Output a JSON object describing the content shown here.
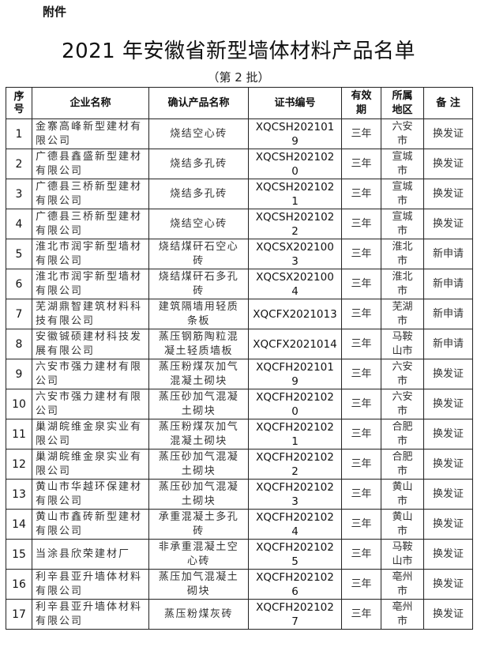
{
  "header": {
    "attachment_label": "附件",
    "title": "2021 年安徽省新型墙体材料产品名单",
    "subtitle": "（第 2 批）"
  },
  "table": {
    "columns": [
      "序号",
      "企业名称",
      "确认产品名称",
      "证书编号",
      "有效期",
      "所属地区",
      "备 注"
    ],
    "rows": [
      {
        "no": "1",
        "company": "金寨高峰新型建材有限公司",
        "product": "烧结空心砖",
        "cert": "XQCSH2021019",
        "validity": "三年",
        "region": "六安市",
        "note": "换发证"
      },
      {
        "no": "2",
        "company": "广德县鑫盛新型建材有限公司",
        "product": "烧结多孔砖",
        "cert": "XQCSH2021020",
        "validity": "三年",
        "region": "宣城市",
        "note": "换发证"
      },
      {
        "no": "3",
        "company": "广德县三桥新型建材有限公司",
        "product": "烧结多孔砖",
        "cert": "XQCSH2021021",
        "validity": "三年",
        "region": "宣城市",
        "note": "换发证"
      },
      {
        "no": "4",
        "company": "广德县三桥新型建材有限公司",
        "product": "烧结空心砖",
        "cert": "XQCSH2021022",
        "validity": "三年",
        "region": "宣城市",
        "note": "换发证"
      },
      {
        "no": "5",
        "company": "淮北市润宇新型墙材有限公司",
        "product": "烧结煤矸石空心砖",
        "cert": "XQCSX2021003",
        "validity": "三年",
        "region": "淮北市",
        "note": "新申请"
      },
      {
        "no": "6",
        "company": "淮北市润宇新型墙材有限公司",
        "product": "烧结煤矸石多孔砖",
        "cert": "XQCSX2021004",
        "validity": "三年",
        "region": "淮北市",
        "note": "新申请"
      },
      {
        "no": "7",
        "company": "芜湖鼎智建筑材料科技有限公司",
        "product": "建筑隔墙用轻质条板",
        "cert": "XQCFX2021013",
        "validity": "三年",
        "region": "芜湖市",
        "note": "新申请"
      },
      {
        "no": "8",
        "company": "安徽铖硕建材科技发展有限公司",
        "product": "蒸压钢筋陶粒混凝土轻质墙板",
        "cert": "XQCFX2021014",
        "validity": "三年",
        "region": "马鞍山市",
        "note": "新申请"
      },
      {
        "no": "9",
        "company": "六安市强力建材有限公司",
        "product": "蒸压粉煤灰加气混凝土砌块",
        "cert": "XQCFH2021019",
        "validity": "三年",
        "region": "六安市",
        "note": "换发证"
      },
      {
        "no": "10",
        "company": "六安市强力建材有限公司",
        "product": "蒸压砂加气混凝土砌块",
        "cert": "XQCFH2021020",
        "validity": "三年",
        "region": "六安市",
        "note": "换发证"
      },
      {
        "no": "11",
        "company": "巢湖皖维金泉实业有限公司",
        "product": "蒸压粉煤灰加气混凝土砌块",
        "cert": "XQCFH2021021",
        "validity": "三年",
        "region": "合肥市",
        "note": "换发证"
      },
      {
        "no": "12",
        "company": "巢湖皖维金泉实业有限公司",
        "product": "蒸压砂加气混凝土砌块",
        "cert": "XQCFH2021022",
        "validity": "三年",
        "region": "合肥市",
        "note": "换发证"
      },
      {
        "no": "13",
        "company": "黄山市华越环保建材有限公司",
        "product": "蒸压砂加气混凝土砌块",
        "cert": "XQCFH2021023",
        "validity": "三年",
        "region": "黄山市",
        "note": "换发证"
      },
      {
        "no": "14",
        "company": "黄山市鑫砖新型建材有限公司",
        "product": "承重混凝土多孔砖",
        "cert": "XQCFH2021024",
        "validity": "三年",
        "region": "黄山市",
        "note": "换发证"
      },
      {
        "no": "15",
        "company": "当涂县欣荣建材厂",
        "product": "非承重混凝土空心砖",
        "cert": "XQCFH2021025",
        "validity": "三年",
        "region": "马鞍山市",
        "note": "换发证"
      },
      {
        "no": "16",
        "company": "利辛县亚升墙体材料有限公司",
        "product": "蒸压加气混凝土砌块",
        "cert": "XQCFH2021026",
        "validity": "三年",
        "region": "亳州市",
        "note": "换发证"
      },
      {
        "no": "17",
        "company": "利辛县亚升墙体材料有限公司",
        "product": "蒸压粉煤灰砖",
        "cert": "XQCFH2021027",
        "validity": "三年",
        "region": "亳州市",
        "note": "换发证"
      }
    ]
  }
}
